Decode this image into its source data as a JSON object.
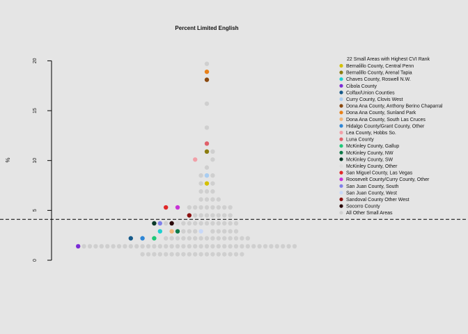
{
  "chart_data": {
    "type": "scatter",
    "title": "Percent Limited English",
    "ylabel": "%",
    "ylim": [
      -1,
      21
    ],
    "yticks": [
      0,
      5,
      10,
      15,
      20
    ],
    "grid": false,
    "legend_position": "right",
    "reference_line": {
      "y": 4.1,
      "style": "dashed"
    },
    "legend_title": "22 Small Areas with Highest CVI Rank",
    "series": [
      {
        "name": "Bernalillo County, Central Penn",
        "color": "#d4c000",
        "points": [
          [
            0,
            7.7
          ]
        ]
      },
      {
        "name": "Bernalillo County, Arenal Tapia",
        "color": "#8c7d10",
        "points": [
          [
            0,
            10.9
          ]
        ]
      },
      {
        "name": "Chaves County, Roswell N.W.",
        "color": "#1ed0d0",
        "points": [
          [
            -8,
            2.9
          ]
        ]
      },
      {
        "name": "Cibola County",
        "color": "#7b2cd6",
        "points": [
          [
            -22,
            1.4
          ]
        ]
      },
      {
        "name": "Colfax/Union Counties",
        "color": "#165a8a",
        "points": [
          [
            -13,
            2.2
          ]
        ]
      },
      {
        "name": "Curry County, Clovis West",
        "color": "#a9cdf2",
        "points": [
          [
            0,
            8.5
          ]
        ]
      },
      {
        "name": "Dona Ana County, Anthony Berino Chaparral",
        "color": "#8b4a10",
        "points": [
          [
            0,
            18.1
          ]
        ]
      },
      {
        "name": "Dona Ana County, Sunland Park",
        "color": "#e88018",
        "points": [
          [
            0,
            18.9
          ]
        ]
      },
      {
        "name": "Dona Ana County, South Las Cruces",
        "color": "#f2b57a",
        "points": [
          [
            -6,
            2.9
          ]
        ]
      },
      {
        "name": "Hidalgo County/Grant County, Other",
        "color": "#2e86d6",
        "points": [
          [
            -11,
            2.2
          ]
        ]
      },
      {
        "name": "Lea County, Hobbs So.",
        "color": "#f2a0a8",
        "points": [
          [
            -2,
            10.1
          ]
        ]
      },
      {
        "name": "Luna County",
        "color": "#e0606a",
        "points": [
          [
            0,
            11.7
          ]
        ]
      },
      {
        "name": "McKinley County, Gallup",
        "color": "#1ec878",
        "points": [
          [
            -9,
            2.2
          ]
        ]
      },
      {
        "name": "McKinley County, NW",
        "color": "#0e7a48",
        "points": [
          [
            -5,
            2.9
          ]
        ]
      },
      {
        "name": "McKinley County, SW",
        "color": "#0a3a28",
        "points": [
          [
            -9,
            3.7
          ]
        ]
      },
      {
        "name": "McKinley County, Other",
        "color": "#dddddd",
        "points": [
          [
            -5,
            3.7
          ]
        ]
      },
      {
        "name": "San Miguel County, Las Vegas",
        "color": "#e02828",
        "points": [
          [
            -7,
            5.3
          ]
        ]
      },
      {
        "name": "Roosevelt County/Curry County, Other",
        "color": "#c832d6",
        "points": [
          [
            -5,
            5.3
          ]
        ]
      },
      {
        "name": "San Juan County, South",
        "color": "#8080e8",
        "points": [
          [
            -8,
            3.7
          ]
        ]
      },
      {
        "name": "San Juan County, West",
        "color": "#c8d8f8",
        "points": [
          [
            -1,
            2.9
          ]
        ]
      },
      {
        "name": "Sandoval County Other West",
        "color": "#8a1010",
        "points": [
          [
            -3,
            4.5
          ]
        ]
      },
      {
        "name": "Socorro County",
        "color": "#2a0808",
        "points": [
          [
            -6,
            3.7
          ]
        ]
      },
      {
        "name": "All Other Small Areas",
        "color": "#cfcfcf",
        "points": [
          [
            0,
            19.7
          ],
          [
            0,
            15.7
          ],
          [
            0,
            13.3
          ],
          [
            1,
            10.9
          ],
          [
            1,
            10.1
          ],
          [
            0,
            9.3
          ],
          [
            -1,
            8.5
          ],
          [
            1,
            8.5
          ],
          [
            0,
            8.5
          ],
          [
            -1,
            7.7
          ],
          [
            1,
            7.7
          ],
          [
            0,
            6.9
          ],
          [
            -1,
            6.9
          ],
          [
            1,
            6.9
          ],
          [
            0,
            6.1
          ],
          [
            -1,
            6.1
          ],
          [
            1,
            6.1
          ],
          [
            2,
            6.1
          ],
          [
            -3,
            5.3
          ],
          [
            -2,
            5.3
          ],
          [
            -1,
            5.3
          ],
          [
            0,
            5.3
          ],
          [
            1,
            5.3
          ],
          [
            2,
            5.3
          ],
          [
            3,
            5.3
          ],
          [
            4,
            5.3
          ],
          [
            -2,
            4.5
          ],
          [
            -1,
            4.5
          ],
          [
            0,
            4.5
          ],
          [
            1,
            4.5
          ],
          [
            2,
            4.5
          ],
          [
            3,
            4.5
          ],
          [
            4,
            4.5
          ],
          [
            -7,
            3.7
          ],
          [
            -4,
            3.7
          ],
          [
            -3,
            3.7
          ],
          [
            -2,
            3.7
          ],
          [
            -1,
            3.7
          ],
          [
            0,
            3.7
          ],
          [
            1,
            3.7
          ],
          [
            2,
            3.7
          ],
          [
            3,
            3.7
          ],
          [
            4,
            3.7
          ],
          [
            5,
            3.7
          ],
          [
            -4,
            2.9
          ],
          [
            -3,
            2.9
          ],
          [
            -2,
            2.9
          ],
          [
            1,
            2.9
          ],
          [
            2,
            2.9
          ],
          [
            3,
            2.9
          ],
          [
            4,
            2.9
          ],
          [
            5,
            2.9
          ],
          [
            -7,
            2.2
          ],
          [
            -6,
            2.2
          ],
          [
            -5,
            2.2
          ],
          [
            -4,
            2.2
          ],
          [
            -3,
            2.2
          ],
          [
            -2,
            2.2
          ],
          [
            -1,
            2.2
          ],
          [
            0,
            2.2
          ],
          [
            1,
            2.2
          ],
          [
            2,
            2.2
          ],
          [
            3,
            2.2
          ],
          [
            4,
            2.2
          ],
          [
            5,
            2.2
          ],
          [
            6,
            2.2
          ],
          [
            7,
            2.2
          ],
          [
            -21,
            1.4
          ],
          [
            -20,
            1.4
          ],
          [
            -19,
            1.4
          ],
          [
            -18,
            1.4
          ],
          [
            -17,
            1.4
          ],
          [
            -16,
            1.4
          ],
          [
            -15,
            1.4
          ],
          [
            -14,
            1.4
          ],
          [
            -13,
            1.4
          ],
          [
            -12,
            1.4
          ],
          [
            -11,
            1.4
          ],
          [
            -10,
            1.4
          ],
          [
            -9,
            1.4
          ],
          [
            -8,
            1.4
          ],
          [
            -7,
            1.4
          ],
          [
            -6,
            1.4
          ],
          [
            -5,
            1.4
          ],
          [
            -4,
            1.4
          ],
          [
            -3,
            1.4
          ],
          [
            -2,
            1.4
          ],
          [
            -1,
            1.4
          ],
          [
            0,
            1.4
          ],
          [
            1,
            1.4
          ],
          [
            2,
            1.4
          ],
          [
            3,
            1.4
          ],
          [
            4,
            1.4
          ],
          [
            5,
            1.4
          ],
          [
            6,
            1.4
          ],
          [
            7,
            1.4
          ],
          [
            8,
            1.4
          ],
          [
            9,
            1.4
          ],
          [
            10,
            1.4
          ],
          [
            11,
            1.4
          ],
          [
            12,
            1.4
          ],
          [
            13,
            1.4
          ],
          [
            14,
            1.4
          ],
          [
            15,
            1.4
          ],
          [
            -11,
            0.6
          ],
          [
            -10,
            0.6
          ],
          [
            -9,
            0.6
          ],
          [
            -8,
            0.6
          ],
          [
            -7,
            0.6
          ],
          [
            -6,
            0.6
          ],
          [
            -5,
            0.6
          ],
          [
            -4,
            0.6
          ],
          [
            -3,
            0.6
          ],
          [
            -2,
            0.6
          ],
          [
            -1,
            0.6
          ],
          [
            0,
            0.6
          ],
          [
            1,
            0.6
          ],
          [
            2,
            0.6
          ],
          [
            3,
            0.6
          ],
          [
            4,
            0.6
          ],
          [
            5,
            0.6
          ],
          [
            6,
            0.6
          ]
        ]
      }
    ]
  }
}
